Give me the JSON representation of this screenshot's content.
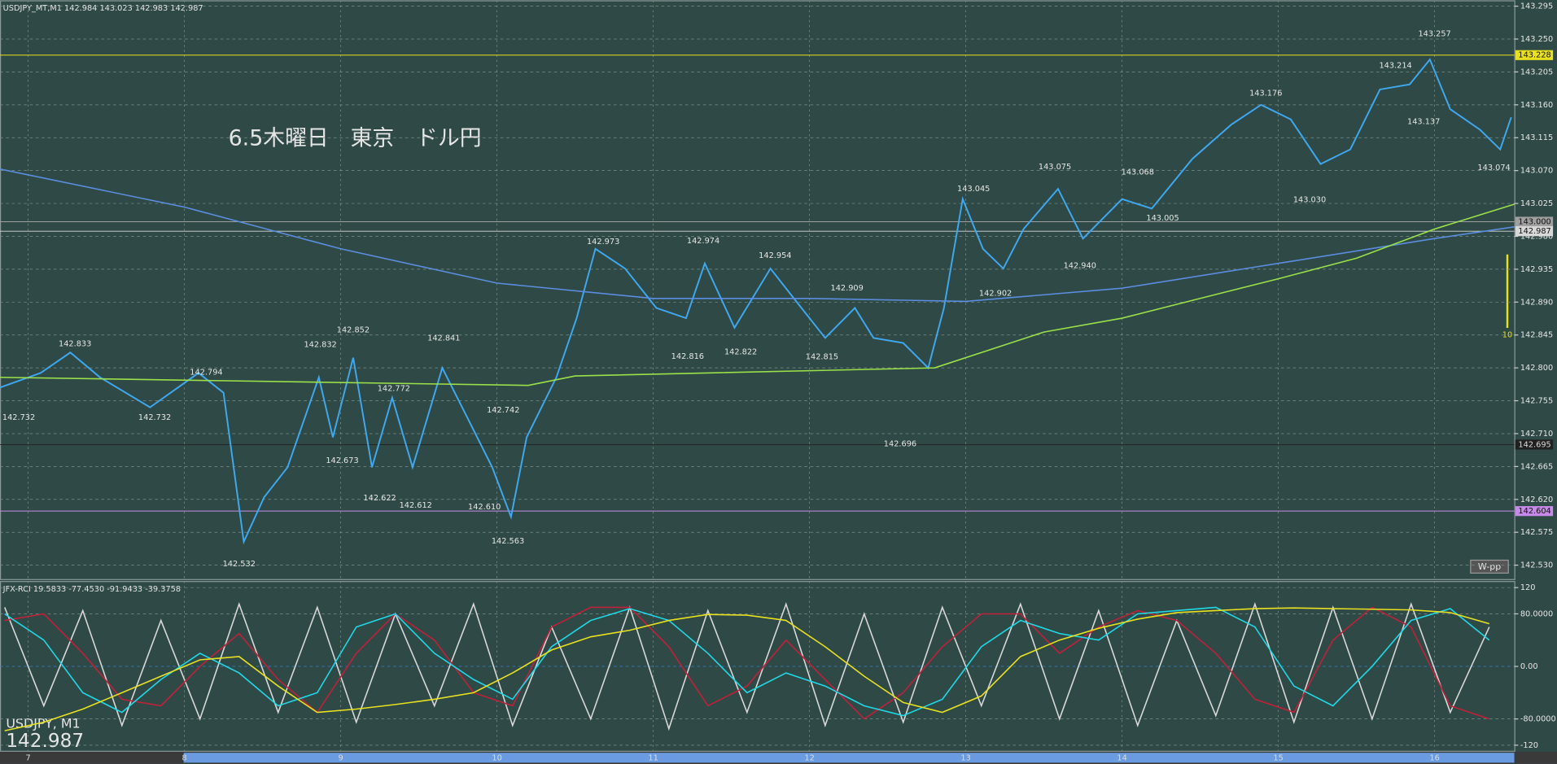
{
  "header": {
    "symbol_info": "USDJPY_MT,M1  142.984 143.023 142.983 142.987",
    "title": "6.5木曜日　東京　ドル円",
    "w_pp": "W-pp",
    "bar_label": "10",
    "indicator_info": "JFX-RCI 19.5833 -77.4530 -91.9433 -39.3758",
    "symbol": "USDJPY, M1",
    "last_price": "142.987"
  },
  "chart_data": [
    {
      "type": "line",
      "xlim": [
        6.82,
        16.51
      ],
      "xticks": [
        7,
        8,
        9,
        10,
        11,
        12,
        13,
        14,
        15,
        16
      ],
      "ylim": [
        142.511,
        143.303
      ],
      "yticks": [
        {
          "value": 142.53,
          "label": "142.530"
        },
        142.575,
        {
          "value": 142.62,
          "label": "142.620"
        },
        142.665,
        {
          "value": 142.71,
          "label": "142.710"
        },
        142.755,
        {
          "value": 142.8,
          "label": "142.800"
        },
        142.845,
        {
          "value": 142.89,
          "label": "142.890"
        },
        142.935,
        {
          "value": 142.98,
          "label": "142.980"
        },
        143.025,
        {
          "value": 143.07,
          "label": "143.070"
        },
        143.115,
        {
          "value": 143.16,
          "label": "143.160"
        },
        143.205,
        {
          "value": 143.25,
          "label": "143.250"
        },
        143.295
      ],
      "grid": true,
      "series": [
        {
          "color": "#3fa8f0",
          "x": [
            6.82,
            7.08,
            7.27,
            7.46,
            7.78,
            8.09,
            8.25,
            8.38,
            8.51,
            8.66,
            8.86,
            8.95,
            9.08,
            9.2,
            9.33,
            9.46,
            9.65,
            9.81,
            9.97,
            10.09,
            10.19,
            10.38,
            10.51,
            10.63,
            10.82,
            11.02,
            11.21,
            11.33,
            11.52,
            11.75,
            11.9,
            12.1,
            12.29,
            12.41,
            12.6,
            12.76,
            12.86,
            12.98,
            13.11,
            13.24,
            13.37,
            13.59,
            13.75,
            14.0,
            14.19,
            14.45,
            14.7,
            14.89,
            15.08,
            15.27,
            15.46,
            15.65,
            15.84,
            15.97,
            16.1,
            16.29,
            16.42,
            16.49
          ],
          "values": [
            142.773,
            142.793,
            142.821,
            142.787,
            142.746,
            142.793,
            142.766,
            142.562,
            142.623,
            142.664,
            142.787,
            142.705,
            142.814,
            142.664,
            142.759,
            142.664,
            142.8,
            142.732,
            142.664,
            142.596,
            142.705,
            142.787,
            142.868,
            142.963,
            142.936,
            142.882,
            142.868,
            142.943,
            142.855,
            142.936,
            142.895,
            142.841,
            142.882,
            142.841,
            142.834,
            142.8,
            142.882,
            143.031,
            142.963,
            142.936,
            142.99,
            143.045,
            142.977,
            143.031,
            143.018,
            143.086,
            143.133,
            143.16,
            143.14,
            143.079,
            143.099,
            143.181,
            143.188,
            143.222,
            143.154,
            143.126,
            143.099,
            143.143
          ]
        },
        {
          "color": "#5b8de0",
          "x": [
            6.82,
            8,
            9,
            10,
            11,
            12,
            13,
            14,
            15,
            16,
            16.51
          ],
          "values": [
            143.072,
            143.02,
            142.963,
            142.916,
            142.895,
            142.895,
            142.891,
            142.909,
            142.943,
            142.977,
            142.993
          ]
        },
        {
          "color": "#9be04a",
          "x": [
            6.82,
            10.2,
            10.5,
            12.8,
            13.5,
            14.0,
            14.5,
            15.0,
            15.5,
            16.0,
            16.51
          ],
          "values": [
            142.787,
            142.776,
            142.789,
            142.8,
            142.849,
            142.868,
            142.895,
            142.922,
            142.95,
            142.99,
            143.024
          ]
        }
      ],
      "price_lines": [
        {
          "value": 143.228,
          "label": "143.228",
          "color": "#e8e020"
        },
        {
          "value": 143.0,
          "label": "143.000",
          "color": "#a0a0a0"
        },
        {
          "value": 142.987,
          "label": "142.987",
          "color": "#d8d8d8"
        },
        {
          "value": 142.695,
          "label": "142.695",
          "color": "#202020"
        },
        {
          "value": 142.604,
          "label": "142.604",
          "color": "#c78ae8"
        }
      ],
      "extremes": {
        "x": [
          7.3,
          6.94,
          7.81,
          8.14,
          8.35,
          8.87,
          9.08,
          9.01,
          9.34,
          9.25,
          9.48,
          9.66,
          10.04,
          9.92,
          10.07,
          10.68,
          11.22,
          11.32,
          11.56,
          11.78,
          12.24,
          12.08,
          12.58,
          13.05,
          13.19,
          13.57,
          13.73,
          14.1,
          14.26,
          14.92,
          15.2,
          15.75,
          15.93,
          16.0,
          16.38
        ],
        "values": [
          142.833,
          142.732,
          142.732,
          142.794,
          142.532,
          142.832,
          142.852,
          142.673,
          142.772,
          142.622,
          142.612,
          142.841,
          142.742,
          142.61,
          142.563,
          142.973,
          142.816,
          142.974,
          142.822,
          142.954,
          142.909,
          142.815,
          142.696,
          143.045,
          142.902,
          143.075,
          142.94,
          143.068,
          143.005,
          143.176,
          143.03,
          143.214,
          143.137,
          143.257,
          143.074
        ],
        "value_labels": [
          "142.833",
          "142.732",
          "142.732",
          "142.794",
          "142.532",
          "142.832",
          "142.852",
          "142.673",
          "142.772",
          "142.622",
          "142.612",
          "142.841",
          "142.742",
          "142.610",
          "142.563",
          "142.973",
          "142.816",
          "142.974",
          "142.822",
          "142.954",
          "142.909",
          "142.815",
          "142.696",
          "143.045",
          "142.902",
          "143.075",
          "142.940",
          "143.068",
          "143.005",
          "143.176",
          "143.030",
          "143.214",
          "143.137",
          "143.257",
          "143.074"
        ]
      }
    },
    {
      "type": "line",
      "xlim": [
        6.82,
        16.51
      ],
      "xticks": [
        7,
        8,
        9,
        10,
        11,
        12,
        13,
        14,
        15,
        16
      ],
      "ylim": [
        -130,
        130
      ],
      "yticks": [
        120,
        {
          "value": 80,
          "label": "80.0000"
        },
        {
          "value": 0,
          "label": "0.00"
        },
        {
          "value": -80,
          "label": "-80.0000"
        },
        -120
      ],
      "grid": true,
      "series": [
        {
          "color": "#d8d8d8",
          "x": [
            6.85,
            7.1,
            7.35,
            7.6,
            7.85,
            8.1,
            8.35,
            8.6,
            8.85,
            9.1,
            9.35,
            9.6,
            9.85,
            10.1,
            10.35,
            10.6,
            10.85,
            11.1,
            11.35,
            11.6,
            11.85,
            12.1,
            12.35,
            12.6,
            12.85,
            13.1,
            13.35,
            13.6,
            13.85,
            14.1,
            14.35,
            14.6,
            14.85,
            15.1,
            15.35,
            15.6,
            15.85,
            16.1,
            16.35
          ],
          "values": [
            90,
            -60,
            85,
            -90,
            70,
            -80,
            95,
            -70,
            90,
            -85,
            80,
            -60,
            95,
            -90,
            60,
            -80,
            90,
            -95,
            85,
            -70,
            95,
            -90,
            80,
            -85,
            90,
            -60,
            95,
            -80,
            85,
            -90,
            70,
            -75,
            95,
            -85,
            90,
            -80,
            95,
            -70,
            60
          ]
        },
        {
          "color": "#c0203a",
          "x": [
            6.85,
            7.1,
            7.35,
            7.6,
            7.85,
            8.1,
            8.35,
            8.6,
            8.85,
            9.1,
            9.35,
            9.6,
            9.85,
            10.1,
            10.35,
            10.6,
            10.85,
            11.1,
            11.35,
            11.6,
            11.85,
            12.1,
            12.35,
            12.6,
            12.85,
            13.1,
            13.35,
            13.6,
            13.85,
            14.1,
            14.35,
            14.6,
            14.85,
            15.1,
            15.35,
            15.6,
            15.85,
            16.1,
            16.35
          ],
          "values": [
            70,
            80,
            20,
            -50,
            -60,
            0,
            50,
            -20,
            -70,
            20,
            80,
            40,
            -40,
            -60,
            60,
            90,
            90,
            30,
            -60,
            -30,
            40,
            -20,
            -80,
            -40,
            30,
            80,
            80,
            20,
            60,
            85,
            70,
            20,
            -50,
            -70,
            40,
            90,
            60,
            -60,
            -80
          ]
        },
        {
          "color": "#20d8e8",
          "x": [
            6.85,
            7.1,
            7.35,
            7.6,
            7.85,
            8.1,
            8.35,
            8.6,
            8.85,
            9.1,
            9.35,
            9.6,
            9.85,
            10.1,
            10.35,
            10.6,
            10.85,
            11.1,
            11.35,
            11.6,
            11.85,
            12.1,
            12.35,
            12.6,
            12.85,
            13.1,
            13.35,
            13.6,
            13.85,
            14.1,
            14.35,
            14.6,
            14.85,
            15.1,
            15.35,
            15.6,
            15.85,
            16.1,
            16.35
          ],
          "values": [
            80,
            40,
            -40,
            -70,
            -20,
            20,
            -10,
            -60,
            -40,
            60,
            80,
            20,
            -20,
            -50,
            30,
            70,
            88,
            70,
            20,
            -40,
            -10,
            -30,
            -60,
            -75,
            -50,
            30,
            70,
            50,
            40,
            80,
            85,
            90,
            60,
            -30,
            -60,
            0,
            70,
            88,
            40
          ]
        },
        {
          "color": "#e8e020",
          "x": [
            6.85,
            7.1,
            7.35,
            7.6,
            7.85,
            8.1,
            8.35,
            8.6,
            8.85,
            9.1,
            9.35,
            9.6,
            9.85,
            10.1,
            10.35,
            10.6,
            10.85,
            11.1,
            11.35,
            11.6,
            11.85,
            12.1,
            12.35,
            12.6,
            12.85,
            13.1,
            13.35,
            13.6,
            13.85,
            14.1,
            14.35,
            14.6,
            14.85,
            15.1,
            15.35,
            15.6,
            15.85,
            16.1,
            16.35
          ],
          "values": [
            -98,
            -85,
            -65,
            -40,
            -15,
            10,
            15,
            -30,
            -70,
            -65,
            -58,
            -50,
            -40,
            -10,
            25,
            45,
            55,
            70,
            79,
            78,
            70,
            30,
            -15,
            -55,
            -70,
            -45,
            15,
            40,
            58,
            72,
            82,
            85,
            88,
            89,
            88,
            87,
            86,
            82,
            65
          ]
        }
      ]
    }
  ]
}
